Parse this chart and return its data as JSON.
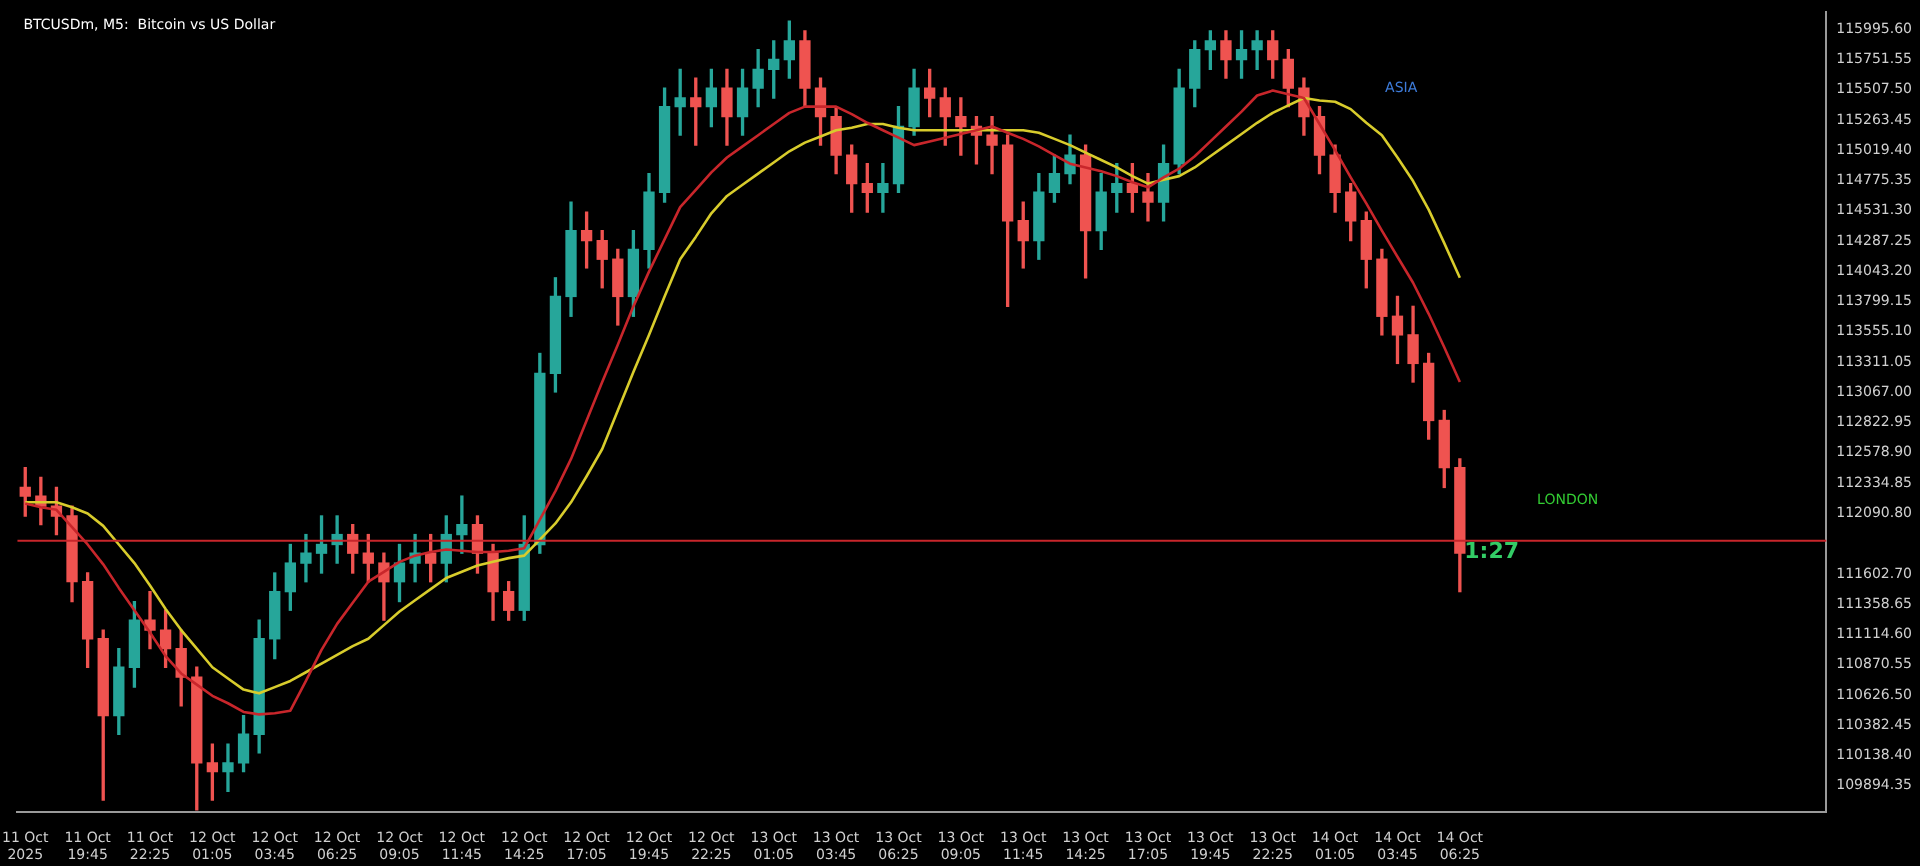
{
  "chart_data": {
    "type": "candlestick",
    "title": "BTCUSDm, M5:  Bitcoin vs US Dollar",
    "categories": [
      "11 Oct 2025",
      null,
      null,
      null,
      "11 Oct 19:45",
      null,
      null,
      null,
      "11 Oct 22:25",
      null,
      null,
      null,
      "12 Oct 01:05",
      null,
      null,
      null,
      "12 Oct 03:45",
      null,
      null,
      null,
      "12 Oct 06:25",
      null,
      null,
      null,
      "12 Oct 09:05",
      null,
      null,
      null,
      "12 Oct 11:45",
      null,
      null,
      null,
      "12 Oct 14:25",
      null,
      null,
      null,
      "12 Oct 17:05",
      null,
      null,
      null,
      "12 Oct 19:45",
      null,
      null,
      null,
      "12 Oct 22:25",
      null,
      null,
      null,
      "13 Oct 01:05",
      null,
      null,
      null,
      "13 Oct 03:45",
      null,
      null,
      null,
      "13 Oct 06:25",
      null,
      null,
      null,
      "13 Oct 09:05",
      null,
      null,
      null,
      "13 Oct 11:45",
      null,
      null,
      null,
      "13 Oct 14:25",
      null,
      null,
      null,
      "13 Oct 17:05",
      null,
      null,
      null,
      "13 Oct 19:45",
      null,
      null,
      null,
      "13 Oct 22:25",
      null,
      null,
      null,
      "14 Oct 01:05",
      null,
      null,
      null,
      "14 Oct 03:45",
      null,
      null,
      null,
      "14 Oct 06:25",
      null,
      null,
      null,
      null,
      null,
      null,
      null,
      null,
      null,
      null,
      null,
      null,
      null,
      null,
      null,
      null,
      null,
      null,
      null,
      null,
      null,
      null,
      null
    ],
    "ohlc": [
      [
        112300,
        112460,
        112070,
        112230
      ],
      [
        112230,
        112380,
        112000,
        112150
      ],
      [
        112150,
        112300,
        111920,
        112070
      ],
      [
        112070,
        112150,
        111380,
        111540
      ],
      [
        111540,
        111610,
        110850,
        111080
      ],
      [
        111080,
        111150,
        109780,
        110460
      ],
      [
        110460,
        111000,
        110310,
        110850
      ],
      [
        110850,
        111380,
        110690,
        111230
      ],
      [
        111230,
        111460,
        111000,
        111150
      ],
      [
        111150,
        111310,
        110850,
        111000
      ],
      [
        111000,
        111150,
        110540,
        110770
      ],
      [
        110770,
        110850,
        109700,
        110080
      ],
      [
        110080,
        110230,
        109780,
        110010
      ],
      [
        110010,
        110230,
        109850,
        110080
      ],
      [
        110080,
        110460,
        110010,
        110310
      ],
      [
        110310,
        111230,
        110160,
        111080
      ],
      [
        111080,
        111610,
        110920,
        111460
      ],
      [
        111460,
        111840,
        111310,
        111690
      ],
      [
        111690,
        111920,
        111540,
        111770
      ],
      [
        111770,
        112070,
        111610,
        111840
      ],
      [
        111840,
        112070,
        111690,
        111920
      ],
      [
        111920,
        112000,
        111610,
        111770
      ],
      [
        111770,
        111920,
        111540,
        111690
      ],
      [
        111690,
        111770,
        111230,
        111540
      ],
      [
        111540,
        111840,
        111380,
        111690
      ],
      [
        111690,
        111920,
        111540,
        111770
      ],
      [
        111770,
        111920,
        111540,
        111690
      ],
      [
        111690,
        112070,
        111540,
        111920
      ],
      [
        111920,
        112230,
        111770,
        112000
      ],
      [
        112000,
        112070,
        111610,
        111770
      ],
      [
        111770,
        111840,
        111230,
        111460
      ],
      [
        111460,
        111540,
        111230,
        111310
      ],
      [
        111310,
        112070,
        111230,
        111840
      ],
      [
        111840,
        113380,
        111770,
        113220
      ],
      [
        113220,
        113990,
        113070,
        113840
      ],
      [
        113840,
        114600,
        113680,
        114370
      ],
      [
        114370,
        114520,
        114070,
        114290
      ],
      [
        114290,
        114370,
        113910,
        114140
      ],
      [
        114140,
        114220,
        113610,
        113840
      ],
      [
        113840,
        114370,
        113680,
        114220
      ],
      [
        114220,
        114830,
        114070,
        114680
      ],
      [
        114680,
        115520,
        114600,
        115370
      ],
      [
        115370,
        115670,
        115140,
        115440
      ],
      [
        115440,
        115600,
        115060,
        115370
      ],
      [
        115370,
        115670,
        115210,
        115520
      ],
      [
        115520,
        115670,
        115060,
        115290
      ],
      [
        115290,
        115670,
        115140,
        115520
      ],
      [
        115520,
        115830,
        115370,
        115670
      ],
      [
        115670,
        115900,
        115440,
        115750
      ],
      [
        115750,
        116060,
        115600,
        115900
      ],
      [
        115900,
        115980,
        115370,
        115520
      ],
      [
        115520,
        115600,
        115060,
        115290
      ],
      [
        115290,
        115370,
        114830,
        114980
      ],
      [
        114980,
        115060,
        114520,
        114750
      ],
      [
        114750,
        114910,
        114520,
        114680
      ],
      [
        114680,
        114910,
        114520,
        114750
      ],
      [
        114750,
        115370,
        114680,
        115210
      ],
      [
        115210,
        115670,
        115140,
        115520
      ],
      [
        115520,
        115670,
        115290,
        115440
      ],
      [
        115440,
        115520,
        115060,
        115290
      ],
      [
        115290,
        115440,
        114980,
        115210
      ],
      [
        115210,
        115290,
        114910,
        115140
      ],
      [
        115140,
        115290,
        114830,
        115060
      ],
      [
        115060,
        115140,
        113760,
        114450
      ],
      [
        114450,
        114600,
        114070,
        114290
      ],
      [
        114290,
        114830,
        114140,
        114680
      ],
      [
        114680,
        114980,
        114600,
        114830
      ],
      [
        114830,
        115140,
        114750,
        114980
      ],
      [
        114980,
        115060,
        113990,
        114370
      ],
      [
        114370,
        114830,
        114220,
        114680
      ],
      [
        114680,
        114910,
        114520,
        114750
      ],
      [
        114750,
        114910,
        114520,
        114680
      ],
      [
        114680,
        114830,
        114450,
        114600
      ],
      [
        114600,
        115060,
        114450,
        114910
      ],
      [
        114910,
        115670,
        114830,
        115520
      ],
      [
        115520,
        115900,
        115370,
        115830
      ],
      [
        115830,
        115980,
        115670,
        115900
      ],
      [
        115900,
        115980,
        115600,
        115750
      ],
      [
        115750,
        115980,
        115600,
        115830
      ],
      [
        115830,
        115980,
        115670,
        115900
      ],
      [
        115900,
        115980,
        115600,
        115750
      ],
      [
        115750,
        115830,
        115370,
        115520
      ],
      [
        115520,
        115600,
        115140,
        115290
      ],
      [
        115290,
        115370,
        114830,
        114980
      ],
      [
        114980,
        115060,
        114520,
        114680
      ],
      [
        114680,
        114750,
        114290,
        114450
      ],
      [
        114450,
        114520,
        113910,
        114140
      ],
      [
        114140,
        114220,
        113530,
        113680
      ],
      [
        113680,
        113840,
        113300,
        113530
      ],
      [
        113530,
        113760,
        113150,
        113300
      ],
      [
        113300,
        113380,
        112690,
        112840
      ],
      [
        112840,
        112920,
        112300,
        112460
      ],
      [
        112460,
        112530,
        111460,
        111770
      ],
      null,
      null,
      null,
      null,
      null,
      null,
      null,
      null,
      null,
      null,
      null,
      null,
      null,
      null,
      null,
      null,
      null,
      null,
      null,
      null,
      null,
      null,
      null
    ],
    "colors": [
      "#ef5350",
      "#ef5350",
      "#ef5350",
      "#ef5350",
      "#ef5350",
      "#ef5350",
      "#26a69a",
      "#26a69a",
      "#ef5350",
      "#ef5350",
      "#ef5350",
      "#ef5350",
      "#ef5350",
      "#26a69a",
      "#26a69a",
      "#26a69a",
      "#26a69a",
      "#26a69a",
      "#26a69a",
      "#26a69a",
      "#26a69a",
      "#ef5350",
      "#ef5350",
      "#ef5350",
      "#26a69a",
      "#26a69a",
      "#ef5350",
      "#26a69a",
      "#26a69a",
      "#ef5350",
      "#ef5350",
      "#ef5350",
      "#26a69a",
      "#26a69a",
      "#26a69a",
      "#26a69a",
      "#ef5350",
      "#ef5350",
      "#ef5350",
      "#26a69a",
      "#26a69a",
      "#26a69a",
      "#26a69a",
      "#ef5350",
      "#26a69a",
      "#ef5350",
      "#26a69a",
      "#26a69a",
      "#26a69a",
      "#26a69a",
      "#ef5350",
      "#ef5350",
      "#ef5350",
      "#ef5350",
      "#ef5350",
      "#26a69a",
      "#26a69a",
      "#26a69a",
      "#ef5350",
      "#ef5350",
      "#ef5350",
      "#ef5350",
      "#ef5350",
      "#ef5350",
      "#ef5350",
      "#26a69a",
      "#26a69a",
      "#26a69a",
      "#ef5350",
      "#26a69a",
      "#26a69a",
      "#ef5350",
      "#ef5350",
      "#26a69a",
      "#26a69a",
      "#26a69a",
      "#26a69a",
      "#ef5350",
      "#26a69a",
      "#26a69a",
      "#ef5350",
      "#ef5350",
      "#ef5350",
      "#ef5350",
      "#ef5350",
      "#ef5350",
      "#ef5350",
      "#ef5350",
      "#ef5350",
      "#ef5350",
      "#ef5350",
      "#ef5350",
      "#ef5350",
      null,
      null,
      null,
      null,
      null,
      null,
      null,
      null,
      null,
      null,
      null,
      null,
      null,
      null,
      null,
      null,
      null,
      null,
      null,
      null,
      null,
      null,
      null
    ],
    "series": [
      {
        "type": "line",
        "color": "#c8262b",
        "values": [
          112170,
          112140,
          112120,
          111980,
          111840,
          111680,
          111490,
          111310,
          111130,
          110940,
          110800,
          110710,
          110620,
          110560,
          110490,
          110470,
          110480,
          110500,
          110740,
          110990,
          111200,
          111370,
          111540,
          111620,
          111700,
          111750,
          111780,
          111800,
          111790,
          111780,
          111780,
          111790,
          111810,
          112040,
          112270,
          112530,
          112840,
          113150,
          113450,
          113760,
          114040,
          114300,
          114560,
          114700,
          114840,
          114960,
          115050,
          115140,
          115230,
          115320,
          115370,
          115370,
          115370,
          115310,
          115240,
          115180,
          115120,
          115060,
          115090,
          115120,
          115150,
          115180,
          115210,
          115160,
          115110,
          115050,
          114980,
          114910,
          114880,
          114850,
          114810,
          114760,
          114720,
          114800,
          114870,
          114970,
          115090,
          115210,
          115330,
          115460,
          115500,
          115470,
          115440,
          115230,
          115020,
          114800,
          114590,
          114370,
          114160,
          113950,
          113700,
          113430,
          113150,
          null,
          null,
          null,
          null,
          null,
          null,
          null,
          null,
          null,
          null,
          null,
          null,
          null,
          null,
          null,
          null,
          null,
          null,
          null,
          null,
          null,
          null,
          null
        ]
      },
      {
        "type": "line",
        "color": "#d8cc2c",
        "values": [
          112180,
          112180,
          112180,
          112140,
          112090,
          111990,
          111840,
          111690,
          111510,
          111320,
          111150,
          111000,
          110850,
          110760,
          110670,
          110640,
          110690,
          110740,
          110810,
          110880,
          110950,
          111020,
          111080,
          111190,
          111300,
          111390,
          111480,
          111570,
          111620,
          111670,
          111700,
          111730,
          111750,
          111880,
          112010,
          112180,
          112390,
          112610,
          112920,
          113230,
          113530,
          113840,
          114140,
          114320,
          114510,
          114650,
          114740,
          114830,
          114920,
          115010,
          115080,
          115130,
          115180,
          115200,
          115230,
          115230,
          115200,
          115180,
          115180,
          115180,
          115180,
          115180,
          115180,
          115180,
          115180,
          115160,
          115110,
          115060,
          115000,
          114940,
          114880,
          114810,
          114750,
          114780,
          114810,
          114880,
          114970,
          115060,
          115150,
          115240,
          115320,
          115380,
          115440,
          115420,
          115410,
          115350,
          115240,
          115140,
          114960,
          114770,
          114540,
          114270,
          113990,
          null,
          null,
          null,
          null,
          null,
          null,
          null,
          null,
          null,
          null,
          null,
          null,
          null,
          null,
          null,
          null,
          null,
          null,
          null,
          null,
          null,
          null,
          null
        ]
      }
    ],
    "ylim": [
      109680,
      116130
    ],
    "yticks": [
      {
        "value": 115995.6,
        "label": "115995.60"
      },
      {
        "value": 115751.55,
        "label": "115751.55"
      },
      {
        "value": 115507.5,
        "label": "115507.50"
      },
      {
        "value": 115263.45,
        "label": "115263.45"
      },
      {
        "value": 115019.4,
        "label": "115019.40"
      },
      {
        "value": 114775.35,
        "label": "114775.35"
      },
      {
        "value": 114531.3,
        "label": "114531.30"
      },
      {
        "value": 114287.25,
        "label": "114287.25"
      },
      {
        "value": 114043.2,
        "label": "114043.20"
      },
      {
        "value": 113799.15,
        "label": "113799.15"
      },
      {
        "value": 113555.1,
        "label": "113555.10"
      },
      {
        "value": 113311.05,
        "label": "113311.05"
      },
      {
        "value": 113067,
        "label": "113067.00"
      },
      {
        "value": 112822.95,
        "label": "112822.95"
      },
      {
        "value": 112578.9,
        "label": "112578.90"
      },
      {
        "value": 112334.85,
        "label": "112334.85"
      },
      {
        "value": 112090.8,
        "label": "112090.80"
      },
      {
        "value": 111602.7,
        "label": "111602.70"
      },
      {
        "value": 111358.65,
        "label": "111358.65"
      },
      {
        "value": 111114.6,
        "label": "111114.60"
      },
      {
        "value": 110870.55,
        "label": "110870.55"
      },
      {
        "value": 110626.5,
        "label": "110626.50"
      },
      {
        "value": 110382.45,
        "label": "110382.45"
      },
      {
        "value": 110138.4,
        "label": "110138.40"
      },
      {
        "value": 109894.35,
        "label": "109894.35"
      }
    ],
    "ref_lines": [
      {
        "axis": "y",
        "value": 111870,
        "color": "#c8262b"
      }
    ],
    "annotations": [
      "ASIA",
      "LONDON",
      "1:27"
    ],
    "grid": false,
    "legend": false
  }
}
